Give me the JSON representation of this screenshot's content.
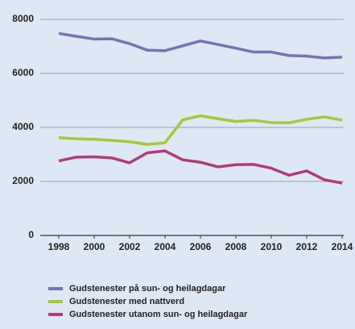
{
  "chart_data": {
    "type": "line",
    "x": [
      1998,
      1999,
      2000,
      2001,
      2002,
      2003,
      2004,
      2005,
      2006,
      2007,
      2008,
      2009,
      2010,
      2011,
      2012,
      2013,
      2014
    ],
    "series": [
      {
        "name": "Gudstenester på sun- og heilagdagar",
        "color": "#7673b3",
        "values": [
          7480,
          7370,
          7270,
          7280,
          7100,
          6860,
          6840,
          7020,
          7200,
          7070,
          6930,
          6790,
          6790,
          6660,
          6640,
          6570,
          6600
        ]
      },
      {
        "name": "Gudstenester med nattverd",
        "color": "#a3c93a",
        "values": [
          3620,
          3580,
          3560,
          3520,
          3470,
          3370,
          3430,
          4280,
          4430,
          4320,
          4220,
          4260,
          4180,
          4170,
          4300,
          4390,
          4270
        ]
      },
      {
        "name": "Gudstenester utanom sun- og heilagdagar",
        "color": "#b03a7c",
        "values": [
          2760,
          2900,
          2910,
          2870,
          2690,
          3060,
          3130,
          2800,
          2710,
          2540,
          2620,
          2630,
          2490,
          2230,
          2390,
          2060,
          1940
        ]
      }
    ],
    "xlim": [
      1998,
      2014
    ],
    "xticks": [
      1998,
      2000,
      2002,
      2004,
      2006,
      2008,
      2010,
      2012,
      2014
    ],
    "ylim": [
      0,
      8000
    ],
    "yticks": [
      0,
      2000,
      4000,
      6000,
      8000
    ],
    "grid": true
  }
}
